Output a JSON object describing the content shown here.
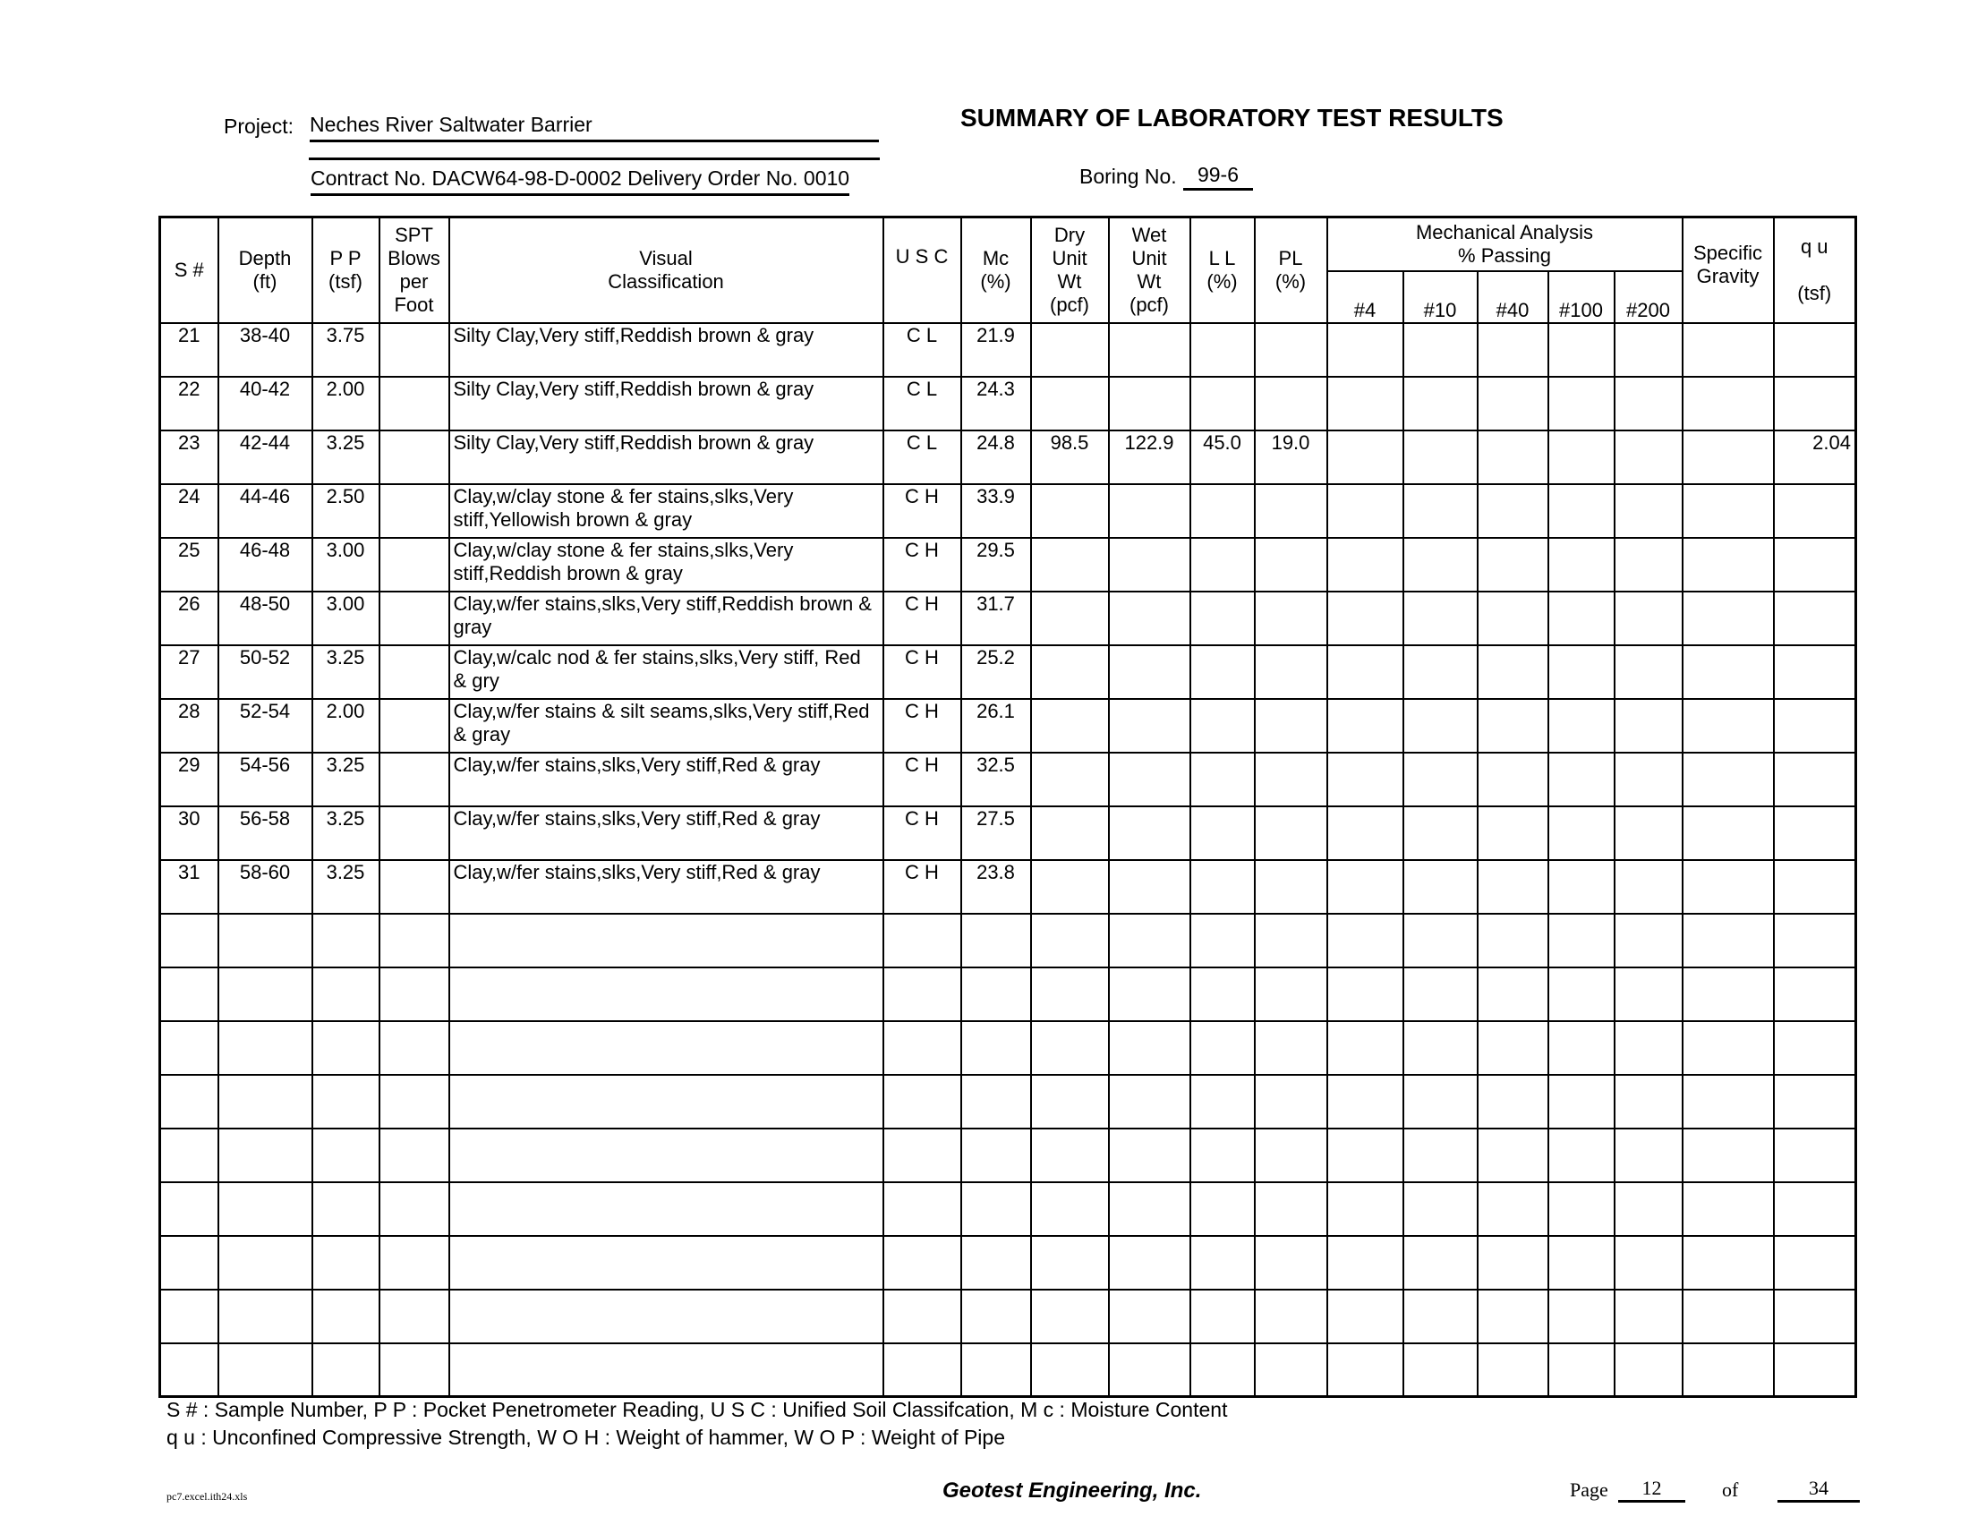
{
  "header": {
    "project_label": "Project:",
    "project_name": "Neches River Saltwater Barrier",
    "contract": "Contract No. DACW64-98-D-0002   Delivery Order No. 0010",
    "title": "SUMMARY OF LABORATORY TEST RESULTS",
    "boring_label": "Boring No.",
    "boring_no": "99-6"
  },
  "columns": {
    "s": "S #",
    "depth": "Depth",
    "depth_unit": "(ft)",
    "pp": "P P",
    "pp_unit": "(tsf)",
    "spt1": "SPT",
    "spt2": "Blows",
    "spt3": "per",
    "spt4": "Foot",
    "visual1": "Visual",
    "visual2": "Classification",
    "usc": "U S C",
    "mc": "Mc",
    "mc_unit": "(%)",
    "dry1": "Dry",
    "dry2": "Unit",
    "dry3": "Wt",
    "dry4": "(pcf)",
    "wet1": "Wet",
    "wet2": "Unit",
    "wet3": "Wt",
    "wet4": "(pcf)",
    "ll": "L L",
    "ll_unit": "(%)",
    "pl": "PL",
    "pl_unit": "(%)",
    "mech1": "Mechanical Analysis",
    "mech2": "% Passing",
    "sieves": [
      "#4",
      "#10",
      "#40",
      "#100",
      "#200"
    ],
    "sg1": "Specific",
    "sg2": "Gravity",
    "qu": "q u",
    "qu_unit": "(tsf)"
  },
  "rows": [
    {
      "s": "21",
      "depth": "38-40",
      "pp": "3.75",
      "desc": "Silty Clay,Very stiff,Reddish brown & gray",
      "usc": "C L",
      "mc": "21.9",
      "dry": "",
      "wet": "",
      "ll": "",
      "pl": "",
      "qu": ""
    },
    {
      "s": "22",
      "depth": "40-42",
      "pp": "2.00",
      "desc": "Silty Clay,Very stiff,Reddish brown & gray",
      "usc": "C L",
      "mc": "24.3",
      "dry": "",
      "wet": "",
      "ll": "",
      "pl": "",
      "qu": ""
    },
    {
      "s": "23",
      "depth": "42-44",
      "pp": "3.25",
      "desc": "Silty Clay,Very stiff,Reddish brown & gray",
      "usc": "C L",
      "mc": "24.8",
      "dry": "98.5",
      "wet": "122.9",
      "ll": "45.0",
      "pl": "19.0",
      "qu": "2.04"
    },
    {
      "s": "24",
      "depth": "44-46",
      "pp": "2.50",
      "desc": "Clay,w/clay stone & fer stains,slks,Very stiff,Yellowish brown & gray",
      "usc": "C H",
      "mc": "33.9",
      "dry": "",
      "wet": "",
      "ll": "",
      "pl": "",
      "qu": ""
    },
    {
      "s": "25",
      "depth": "46-48",
      "pp": "3.00",
      "desc": "Clay,w/clay stone & fer stains,slks,Very stiff,Reddish brown & gray",
      "usc": "C H",
      "mc": "29.5",
      "dry": "",
      "wet": "",
      "ll": "",
      "pl": "",
      "qu": ""
    },
    {
      "s": "26",
      "depth": "48-50",
      "pp": "3.00",
      "desc": "Clay,w/fer stains,slks,Very stiff,Reddish brown & gray",
      "usc": "C H",
      "mc": "31.7",
      "dry": "",
      "wet": "",
      "ll": "",
      "pl": "",
      "qu": ""
    },
    {
      "s": "27",
      "depth": "50-52",
      "pp": "3.25",
      "desc": "Clay,w/calc nod & fer stains,slks,Very stiff, Red & gry",
      "usc": "C H",
      "mc": "25.2",
      "dry": "",
      "wet": "",
      "ll": "",
      "pl": "",
      "qu": ""
    },
    {
      "s": "28",
      "depth": "52-54",
      "pp": "2.00",
      "desc": "Clay,w/fer stains & silt seams,slks,Very stiff,Red & gray",
      "usc": "C H",
      "mc": "26.1",
      "dry": "",
      "wet": "",
      "ll": "",
      "pl": "",
      "qu": ""
    },
    {
      "s": "29",
      "depth": "54-56",
      "pp": "3.25",
      "desc": "Clay,w/fer stains,slks,Very stiff,Red & gray",
      "usc": "C H",
      "mc": "32.5",
      "dry": "",
      "wet": "",
      "ll": "",
      "pl": "",
      "qu": ""
    },
    {
      "s": "30",
      "depth": "56-58",
      "pp": "3.25",
      "desc": "Clay,w/fer stains,slks,Very stiff,Red & gray",
      "usc": "C H",
      "mc": "27.5",
      "dry": "",
      "wet": "",
      "ll": "",
      "pl": "",
      "qu": ""
    },
    {
      "s": "31",
      "depth": "58-60",
      "pp": "3.25",
      "desc": "Clay,w/fer stains,slks,Very stiff,Red & gray",
      "usc": "C H",
      "mc": "23.8",
      "dry": "",
      "wet": "",
      "ll": "",
      "pl": "",
      "qu": ""
    }
  ],
  "legend": {
    "line1": "S # : Sample Number,  P P :  Pocket Penetrometer Reading,  U S C :  Unified Soil Classifcation,  M c :  Moisture Content",
    "line2": "q u : Unconfined Compressive Strength,  W O H : Weight of hammer,  W O P : Weight of Pipe"
  },
  "footer": {
    "filename": "pc7.excel.ith24.xls",
    "company": "Geotest Engineering, Inc.",
    "page_label": "Page",
    "page": "12",
    "of_label": "of",
    "total": "34"
  }
}
